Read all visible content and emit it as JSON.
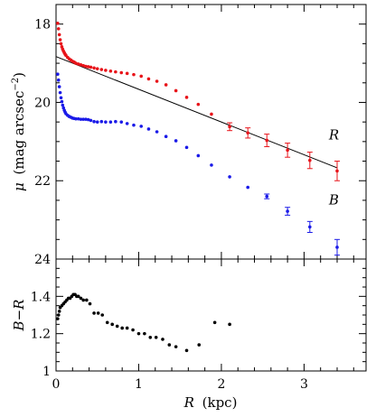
{
  "chart_data": [
    {
      "type": "scatter",
      "panel": "surface-brightness",
      "ylabel": {
        "symbol": "μ",
        "text": "(mag arcsec",
        "sup": "−2",
        "close": ")"
      },
      "xlim": [
        0,
        3.75
      ],
      "ylim": [
        24,
        17.5
      ],
      "y_inverted": true,
      "y_ticks": [
        18,
        20,
        22,
        24
      ],
      "y_tick_labels": [
        "18",
        "20",
        "22",
        "24"
      ],
      "series": [
        {
          "name": "R",
          "color": "#e8141a",
          "x": [
            0.02,
            0.03,
            0.04,
            0.05,
            0.06,
            0.07,
            0.08,
            0.09,
            0.1,
            0.11,
            0.12,
            0.14,
            0.16,
            0.18,
            0.2,
            0.22,
            0.24,
            0.27,
            0.3,
            0.33,
            0.36,
            0.39,
            0.42,
            0.46,
            0.5,
            0.55,
            0.6,
            0.66,
            0.72,
            0.79,
            0.86,
            0.94,
            1.03,
            1.12,
            1.22,
            1.33,
            1.45,
            1.58,
            1.72,
            1.88
          ],
          "y": [
            17.98,
            18.12,
            18.27,
            18.4,
            18.5,
            18.58,
            18.64,
            18.69,
            18.73,
            18.77,
            18.8,
            18.85,
            18.89,
            18.92,
            18.95,
            18.97,
            19.0,
            19.02,
            19.04,
            19.06,
            19.08,
            19.09,
            19.1,
            19.12,
            19.14,
            19.16,
            19.18,
            19.2,
            19.22,
            19.24,
            19.26,
            19.29,
            19.33,
            19.4,
            19.46,
            19.55,
            19.7,
            19.87,
            20.05,
            20.3
          ]
        },
        {
          "name": "B",
          "color": "#1a1ae8",
          "x": [
            0.02,
            0.03,
            0.04,
            0.05,
            0.06,
            0.07,
            0.08,
            0.09,
            0.1,
            0.11,
            0.12,
            0.14,
            0.16,
            0.18,
            0.2,
            0.22,
            0.24,
            0.27,
            0.3,
            0.33,
            0.36,
            0.39,
            0.42,
            0.46,
            0.5,
            0.55,
            0.6,
            0.66,
            0.72,
            0.79,
            0.86,
            0.94,
            1.03,
            1.12,
            1.22,
            1.33,
            1.45,
            1.58,
            1.72,
            1.88,
            2.1,
            2.32
          ],
          "y": [
            19.28,
            19.43,
            19.6,
            19.75,
            19.88,
            19.98,
            20.07,
            20.14,
            20.2,
            20.25,
            20.29,
            20.33,
            20.36,
            20.38,
            20.4,
            20.41,
            20.42,
            20.42,
            20.43,
            20.43,
            20.43,
            20.44,
            20.46,
            20.49,
            20.5,
            20.49,
            20.5,
            20.5,
            20.49,
            20.5,
            20.54,
            20.58,
            20.61,
            20.68,
            20.75,
            20.87,
            20.98,
            21.15,
            21.36,
            21.6,
            21.9,
            22.17
          ]
        },
        {
          "name": "R-errorbars",
          "color": "#e8141a",
          "x": [
            2.1,
            2.32,
            2.55,
            2.8,
            3.07,
            3.4
          ],
          "y": [
            20.62,
            20.78,
            20.97,
            21.22,
            21.48,
            21.75
          ],
          "yerr": [
            0.1,
            0.13,
            0.16,
            0.18,
            0.21,
            0.25
          ]
        },
        {
          "name": "B-errorbars",
          "color": "#1a1ae8",
          "x": [
            2.55,
            2.8,
            3.07,
            3.4
          ],
          "y": [
            22.4,
            22.78,
            23.18,
            23.7
          ],
          "yerr": [
            0.06,
            0.1,
            0.14,
            0.2
          ]
        }
      ],
      "fit_line": {
        "x": [
          0,
          3.4
        ],
        "y": [
          18.83,
          21.67
        ],
        "color": "#000000"
      },
      "annotations": [
        {
          "text": "R",
          "x": 3.3,
          "y": 20.95
        },
        {
          "text": "B",
          "x": 3.3,
          "y": 22.6
        }
      ]
    },
    {
      "type": "scatter",
      "panel": "color",
      "ylabel": {
        "symbol": "B",
        "sep": "−",
        "symbol2": "R"
      },
      "xlabel": {
        "symbol": "R",
        "text": "(kpc)"
      },
      "xlim": [
        0,
        3.75
      ],
      "ylim": [
        1.0,
        1.6
      ],
      "x_ticks": [
        0,
        1,
        2,
        3
      ],
      "x_tick_labels": [
        "0",
        "1",
        "2",
        "3"
      ],
      "y_ticks": [
        1.0,
        1.2,
        1.4
      ],
      "y_tick_labels": [
        "1",
        "1.2",
        "1.4"
      ],
      "series": [
        {
          "name": "B-R",
          "color": "#000000",
          "x": [
            0.02,
            0.03,
            0.04,
            0.05,
            0.07,
            0.09,
            0.11,
            0.13,
            0.15,
            0.17,
            0.19,
            0.21,
            0.23,
            0.25,
            0.27,
            0.3,
            0.33,
            0.37,
            0.41,
            0.46,
            0.51,
            0.56,
            0.62,
            0.68,
            0.74,
            0.8,
            0.86,
            0.93,
            1.0,
            1.07,
            1.14,
            1.21,
            1.29,
            1.37,
            1.45,
            1.58,
            1.73,
            1.92,
            2.1
          ],
          "y": [
            1.28,
            1.3,
            1.32,
            1.34,
            1.35,
            1.36,
            1.37,
            1.38,
            1.39,
            1.39,
            1.4,
            1.41,
            1.41,
            1.4,
            1.4,
            1.39,
            1.38,
            1.38,
            1.36,
            1.31,
            1.31,
            1.3,
            1.26,
            1.25,
            1.24,
            1.23,
            1.23,
            1.22,
            1.2,
            1.2,
            1.18,
            1.18,
            1.17,
            1.14,
            1.13,
            1.11,
            1.14,
            1.26,
            1.25
          ]
        }
      ]
    }
  ]
}
